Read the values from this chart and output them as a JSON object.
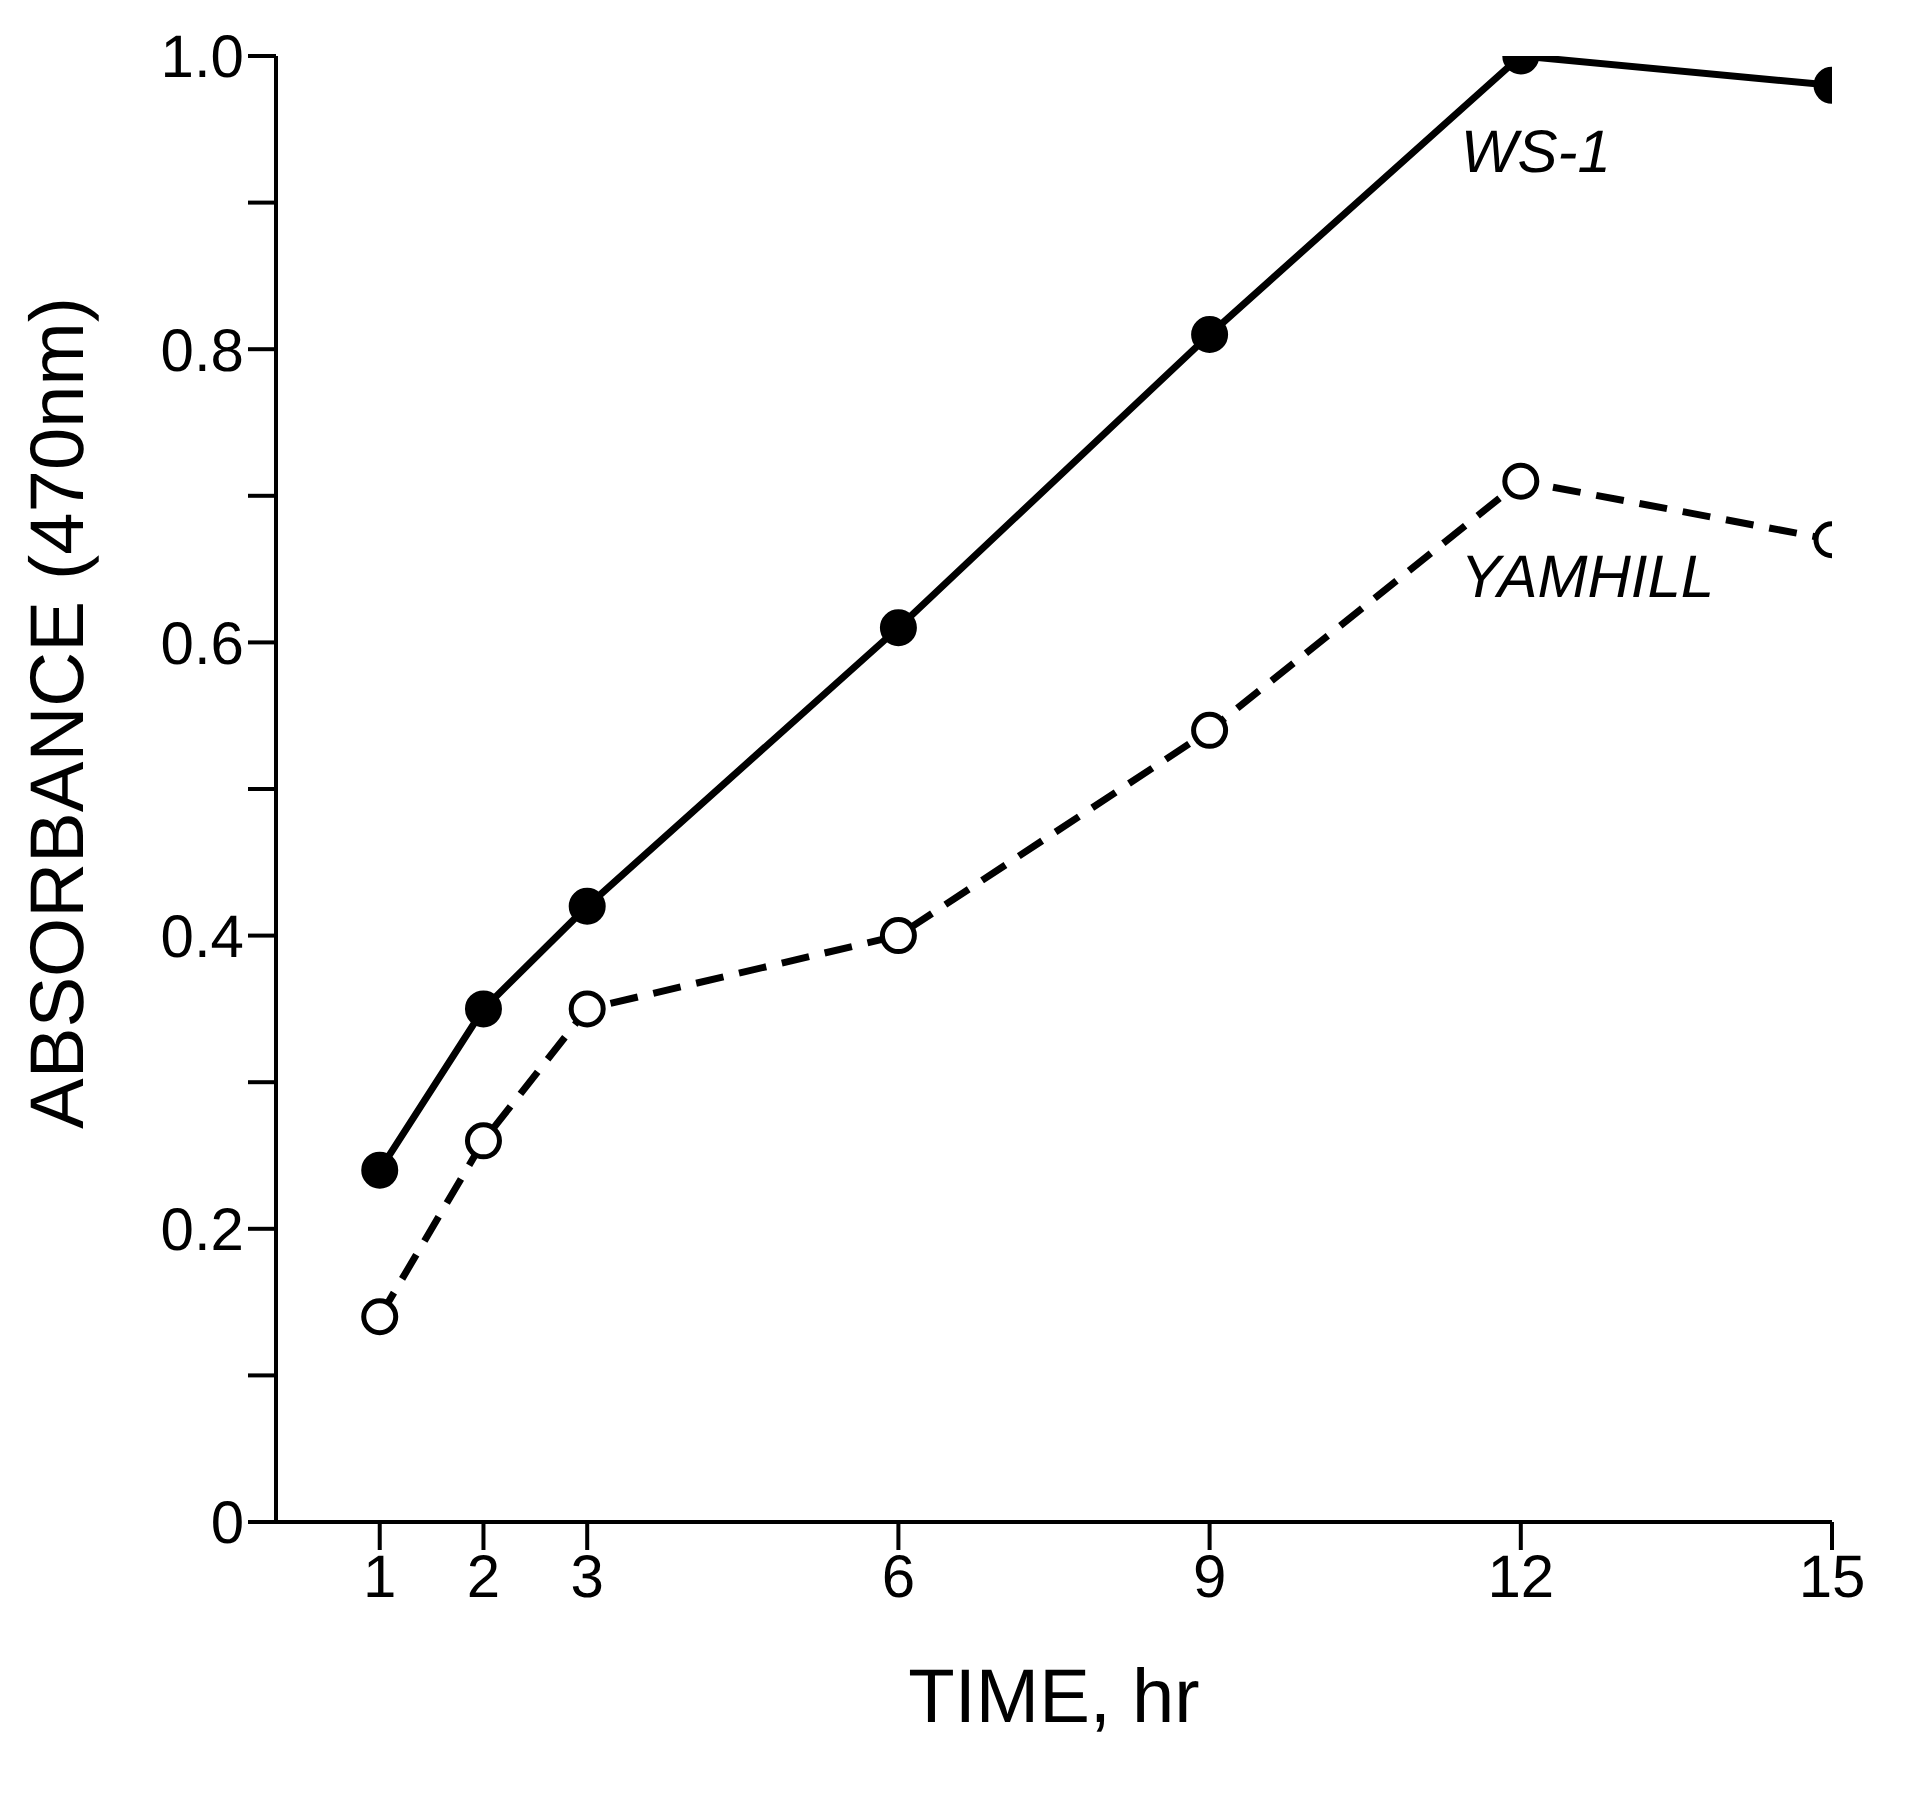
{
  "chart_data": {
    "type": "line",
    "xlabel": "TIME, hr",
    "ylabel": "ABSORBANCE (470nm)",
    "xlim": [
      0,
      15
    ],
    "xticks": [
      1,
      2,
      3,
      6,
      9,
      12,
      15
    ],
    "ylim": [
      0,
      1
    ],
    "yticks": [
      0,
      {
        "value": 0.1,
        "label": null
      },
      0.2,
      {
        "value": 0.3,
        "label": null
      },
      0.4,
      {
        "value": 0.5,
        "label": null
      },
      0.6,
      {
        "value": 0.7,
        "label": null
      },
      0.8,
      {
        "value": 0.9,
        "label": null
      },
      {
        "value": 1,
        "label": "1.0"
      }
    ],
    "grid": false,
    "legend": false,
    "marker": "circle",
    "x": [
      1,
      2,
      3,
      6,
      9,
      12,
      15
    ],
    "series": [
      {
        "name": "WS-1",
        "color": "#000000",
        "line_style": "solid",
        "values": [
          0.24,
          0.35,
          0.42,
          0.61,
          0.81,
          1.0,
          0.98
        ]
      },
      {
        "name": "YAMHILL",
        "color": "#000000",
        "line_style": "dashed",
        "values": [
          0.14,
          0.26,
          0.35,
          0.4,
          0.54,
          0.71,
          0.67
        ]
      }
    ]
  }
}
